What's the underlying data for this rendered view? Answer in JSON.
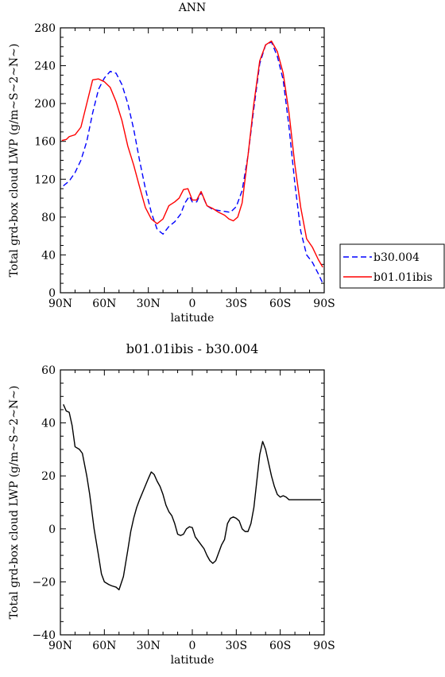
{
  "chart_data": [
    {
      "type": "line",
      "title": "ANN",
      "xlabel": "latitude",
      "ylabel": "Total grd-box cloud LWP (g/m~S~2~N~)",
      "xlim": [
        90,
        -90
      ],
      "ylim": [
        0,
        280
      ],
      "xticks": [
        90,
        60,
        30,
        0,
        -30,
        -60,
        -90
      ],
      "xtick_labels": [
        "90N",
        "60N",
        "30N",
        "0",
        "30S",
        "60S",
        "90S"
      ],
      "yticks": [
        0,
        40,
        80,
        120,
        160,
        200,
        240,
        280
      ],
      "ytick_labels": [
        "0",
        "40",
        "80",
        "120",
        "160",
        "200",
        "240",
        "280"
      ],
      "grid": false,
      "legend": "outside-right",
      "series": [
        {
          "name": "b30.004",
          "color": "#0000ff",
          "style": "dashed",
          "x": [
            88,
            84,
            80,
            76,
            72,
            68,
            64,
            60,
            56,
            52,
            48,
            44,
            40,
            36,
            32,
            28,
            24,
            20,
            16,
            12,
            8,
            5,
            2,
            0,
            -3,
            -6,
            -10,
            -14,
            -18,
            -22,
            -26,
            -30,
            -34,
            -38,
            -42,
            -46,
            -50,
            -54,
            -58,
            -62,
            -66,
            -70,
            -74,
            -78,
            -82,
            -86,
            -89
          ],
          "y": [
            113,
            118,
            127,
            140,
            160,
            190,
            215,
            227,
            234,
            232,
            220,
            200,
            173,
            140,
            110,
            85,
            67,
            62,
            70,
            75,
            83,
            95,
            102,
            96,
            96,
            106,
            92,
            88,
            87,
            86,
            85,
            91,
            108,
            145,
            195,
            242,
            262,
            265,
            250,
            225,
            175,
            115,
            65,
            40,
            32,
            20,
            10
          ]
        },
        {
          "name": "b01.01ibis",
          "color": "#ff0000",
          "style": "solid",
          "x": [
            89,
            86,
            84,
            80,
            76,
            72,
            68,
            64,
            60,
            56,
            52,
            48,
            44,
            40,
            36,
            32,
            28,
            24,
            20,
            16,
            12,
            9,
            6,
            3,
            0,
            -3,
            -6,
            -10,
            -14,
            -18,
            -22,
            -25,
            -28,
            -31,
            -34,
            -38,
            -42,
            -46,
            -50,
            -54,
            -58,
            -62,
            -66,
            -70,
            -74,
            -78,
            -82,
            -86,
            -89
          ],
          "y": [
            161,
            162,
            165,
            167,
            175,
            200,
            225,
            226,
            223,
            217,
            202,
            182,
            155,
            135,
            112,
            90,
            78,
            73,
            78,
            92,
            96,
            100,
            109,
            110,
            98,
            98,
            107,
            92,
            89,
            85,
            82,
            78,
            76,
            80,
            95,
            145,
            200,
            245,
            262,
            266,
            255,
            232,
            190,
            135,
            90,
            57,
            48,
            35,
            27
          ]
        }
      ]
    },
    {
      "type": "line",
      "title": "b01.01ibis - b30.004",
      "xlabel": "latitude",
      "ylabel": "Total grd-box cloud LWP (g/m~S~2~N~)",
      "xlim": [
        90,
        -90
      ],
      "ylim": [
        -40,
        60
      ],
      "xticks": [
        90,
        60,
        30,
        0,
        -30,
        -60,
        -90
      ],
      "xtick_labels": [
        "90N",
        "60N",
        "30N",
        "0",
        "30S",
        "60S",
        "90S"
      ],
      "yticks": [
        -40,
        -20,
        0,
        20,
        40,
        60
      ],
      "ytick_labels": [
        "−40",
        "−20",
        "0",
        "20",
        "40",
        "60"
      ],
      "grid": false,
      "series": [
        {
          "color": "#000000",
          "style": "solid",
          "x": [
            88,
            86,
            84,
            82,
            80,
            77,
            75,
            72,
            70,
            67,
            64,
            62,
            60,
            57,
            55,
            52,
            50,
            47,
            44,
            42,
            40,
            38,
            36,
            33,
            30,
            28,
            26,
            24,
            22,
            20,
            18,
            16,
            14,
            12,
            10,
            8,
            6,
            4,
            2,
            0,
            -2,
            -4,
            -6,
            -8,
            -10,
            -12,
            -14,
            -16,
            -18,
            -20,
            -22,
            -24,
            -26,
            -28,
            -30,
            -32,
            -34,
            -36,
            -38,
            -40,
            -42,
            -44,
            -46,
            -48,
            -50,
            -52,
            -54,
            -56,
            -58,
            -60,
            -62,
            -64,
            -66,
            -68,
            -70,
            -72,
            -74,
            -76,
            -78,
            -80,
            -82,
            -84,
            -86,
            -88
          ],
          "y": [
            47,
            44.5,
            44,
            39,
            31,
            30,
            28.5,
            20,
            13,
            0,
            -10,
            -17,
            -20,
            -21,
            -21.5,
            -22,
            -23,
            -18,
            -8,
            -1,
            4,
            8,
            11,
            15,
            19,
            21.5,
            20.5,
            18,
            16,
            13,
            9,
            6.5,
            5,
            2,
            -2,
            -2.5,
            -2,
            0,
            0.8,
            0.5,
            -3,
            -4.5,
            -6,
            -7.5,
            -10,
            -12,
            -13,
            -12,
            -9,
            -6,
            -4,
            2,
            4,
            4.5,
            4,
            3,
            0,
            -1,
            -1,
            2,
            8,
            18,
            28,
            33,
            30,
            25,
            20,
            16,
            13,
            12,
            12.5,
            12,
            11,
            11,
            11,
            11,
            11,
            11,
            11,
            11,
            11,
            11,
            11,
            11
          ]
        }
      ]
    }
  ]
}
